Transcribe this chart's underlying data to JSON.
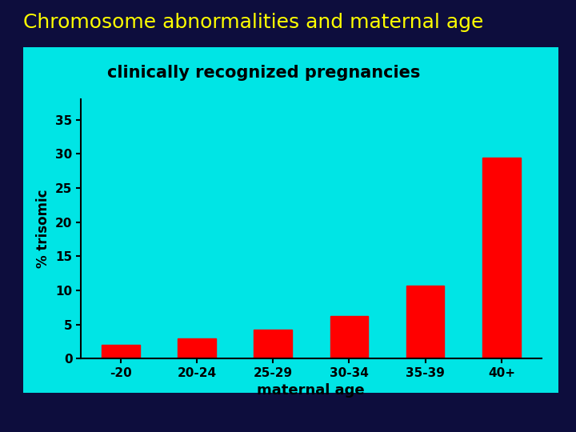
{
  "title": "Chromosome abnormalities and maternal age",
  "title_color": "#FFFF00",
  "title_fontsize": 18,
  "title_fontweight": "normal",
  "subtitle": "clinically recognized pregnancies",
  "subtitle_fontsize": 15,
  "categories": [
    "-20",
    "20-24",
    "25-29",
    "30-34",
    "35-39",
    "40+"
  ],
  "values": [
    2.0,
    3.0,
    4.2,
    6.2,
    10.7,
    29.5
  ],
  "bar_color": "#FF0000",
  "xlabel": "maternal age",
  "ylabel": "% trisomic",
  "xlabel_fontsize": 13,
  "ylabel_fontsize": 12,
  "yticks": [
    0,
    5,
    10,
    15,
    20,
    25,
    30,
    35
  ],
  "ylim": [
    0,
    38
  ],
  "background_outer": "#0d0d3d",
  "background_inner": "#00E5E5",
  "tick_fontsize": 11,
  "fig_width": 7.2,
  "fig_height": 5.4,
  "dpi": 100
}
